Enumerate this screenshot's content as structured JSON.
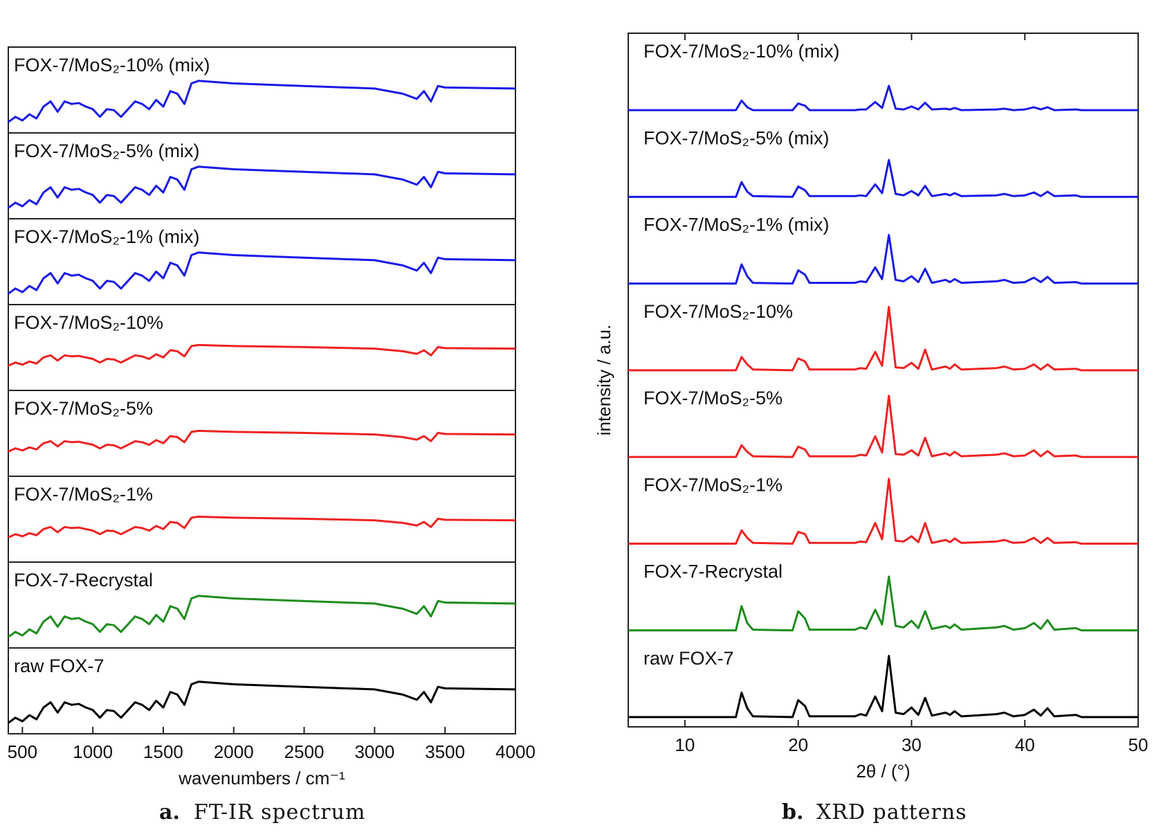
{
  "chart_data": [
    {
      "type": "line",
      "xlabel": "wavenumbers / cm⁻¹",
      "caption_label": "a.",
      "caption": "FT-IR spectrum",
      "xlim": [
        400,
        4000
      ],
      "xticks": [
        500,
        1000,
        1500,
        2000,
        2500,
        3000,
        3500,
        4000
      ],
      "ylim": [
        0,
        100
      ],
      "x": [
        400,
        450,
        500,
        550,
        600,
        650,
        700,
        750,
        800,
        850,
        900,
        950,
        1000,
        1050,
        1100,
        1150,
        1200,
        1250,
        1300,
        1350,
        1400,
        1450,
        1500,
        1550,
        1600,
        1650,
        1700,
        1750,
        2000,
        2500,
        3000,
        3200,
        3300,
        3350,
        3400,
        3450,
        3500,
        4000
      ],
      "series": [
        {
          "name": "FOX-7/MoS₂-10% (mix)",
          "color": "#1a1ae6",
          "values": [
            5,
            15,
            8,
            20,
            12,
            35,
            45,
            25,
            45,
            40,
            42,
            35,
            30,
            15,
            30,
            28,
            15,
            30,
            45,
            40,
            30,
            48,
            35,
            65,
            60,
            40,
            80,
            85,
            80,
            75,
            70,
            60,
            50,
            65,
            45,
            75,
            72,
            70
          ]
        },
        {
          "name": "FOX-7/MoS₂-5% (mix)",
          "color": "#1a1ae6",
          "values": [
            5,
            15,
            8,
            20,
            12,
            35,
            45,
            25,
            45,
            40,
            42,
            35,
            30,
            15,
            30,
            28,
            15,
            30,
            45,
            40,
            30,
            48,
            35,
            65,
            60,
            40,
            80,
            85,
            80,
            75,
            70,
            60,
            50,
            65,
            45,
            75,
            72,
            70
          ]
        },
        {
          "name": "FOX-7/MoS₂-1% (mix)",
          "color": "#1a1ae6",
          "values": [
            5,
            15,
            8,
            20,
            12,
            35,
            45,
            25,
            45,
            40,
            42,
            35,
            30,
            15,
            30,
            28,
            15,
            30,
            45,
            40,
            30,
            48,
            35,
            65,
            60,
            40,
            80,
            85,
            80,
            75,
            70,
            60,
            50,
            65,
            45,
            75,
            72,
            70
          ]
        },
        {
          "name": "FOX-7/MoS₂-10%",
          "color": "#ee2222",
          "values": [
            32,
            38,
            34,
            40,
            36,
            48,
            52,
            42,
            52,
            50,
            51,
            48,
            45,
            38,
            45,
            44,
            38,
            45,
            52,
            50,
            45,
            54,
            48,
            62,
            60,
            50,
            70,
            72,
            70,
            68,
            65,
            60,
            55,
            62,
            52,
            68,
            66,
            65
          ]
        },
        {
          "name": "FOX-7/MoS₂-5%",
          "color": "#ee2222",
          "values": [
            32,
            38,
            34,
            40,
            36,
            48,
            52,
            42,
            52,
            50,
            51,
            48,
            45,
            38,
            45,
            44,
            38,
            45,
            52,
            50,
            45,
            54,
            48,
            62,
            60,
            50,
            70,
            72,
            70,
            68,
            65,
            60,
            55,
            62,
            52,
            68,
            66,
            65
          ]
        },
        {
          "name": "FOX-7/MoS₂-1%",
          "color": "#ee2222",
          "values": [
            32,
            38,
            34,
            40,
            36,
            48,
            52,
            42,
            52,
            50,
            51,
            48,
            45,
            38,
            45,
            44,
            38,
            45,
            52,
            50,
            45,
            54,
            48,
            62,
            60,
            50,
            70,
            72,
            70,
            68,
            65,
            60,
            55,
            62,
            52,
            68,
            66,
            65
          ]
        },
        {
          "name": "FOX-7-Recrystal",
          "color": "#1e8c1e",
          "values": [
            5,
            15,
            8,
            20,
            12,
            35,
            45,
            25,
            45,
            40,
            42,
            35,
            30,
            15,
            30,
            28,
            15,
            30,
            45,
            40,
            30,
            48,
            35,
            65,
            60,
            40,
            80,
            85,
            80,
            75,
            70,
            60,
            50,
            65,
            45,
            75,
            72,
            70
          ]
        },
        {
          "name": "raw FOX-7",
          "color": "#000000",
          "values": [
            5,
            15,
            8,
            20,
            12,
            35,
            45,
            25,
            45,
            40,
            42,
            35,
            30,
            15,
            30,
            28,
            15,
            30,
            45,
            40,
            30,
            48,
            35,
            65,
            60,
            40,
            80,
            85,
            80,
            75,
            70,
            60,
            50,
            65,
            45,
            75,
            72,
            70
          ]
        }
      ]
    },
    {
      "type": "line",
      "xlabel": "2θ / (°)",
      "ylabel": "intensity / a.u.",
      "caption_label": "b.",
      "caption": "XRD patterns",
      "xlim": [
        5,
        50
      ],
      "xticks": [
        10,
        20,
        30,
        40,
        50
      ],
      "ylim": [
        0,
        100
      ],
      "x": [
        5,
        14.5,
        15,
        15.5,
        16,
        19.5,
        20,
        20.6,
        21,
        25,
        25.5,
        26,
        26.8,
        27.4,
        28,
        28.6,
        29.3,
        30,
        30.6,
        31.2,
        31.8,
        33,
        33.4,
        33.8,
        34.4,
        37.5,
        38.2,
        39,
        40,
        40.8,
        41.4,
        42,
        42.6,
        44.5,
        45,
        50
      ],
      "series": [
        {
          "name": "FOX-7/MoS₂-10% (mix)",
          "color": "#1a1ae6",
          "values": [
            2,
            2,
            15,
            6,
            2,
            2,
            11,
            8,
            2,
            2,
            3,
            3,
            13,
            5,
            35,
            4,
            3,
            7,
            3,
            12,
            3,
            4,
            3,
            5,
            2,
            3,
            4,
            2,
            3,
            6,
            3,
            6,
            2,
            3,
            2,
            2
          ]
        },
        {
          "name": "FOX-7/MoS₂-5% (mix)",
          "color": "#1a1ae6",
          "values": [
            2,
            2,
            22,
            9,
            3,
            2,
            16,
            11,
            3,
            3,
            4,
            3,
            19,
            7,
            52,
            6,
            4,
            10,
            4,
            17,
            3,
            6,
            4,
            7,
            3,
            4,
            6,
            3,
            4,
            8,
            3,
            9,
            3,
            4,
            2,
            2
          ]
        },
        {
          "name": "FOX-7/MoS₂-1% (mix)",
          "color": "#1a1ae6",
          "values": [
            2,
            2,
            28,
            12,
            3,
            2,
            20,
            14,
            3,
            3,
            5,
            4,
            24,
            8,
            68,
            7,
            5,
            12,
            4,
            22,
            3,
            7,
            4,
            8,
            3,
            5,
            7,
            3,
            4,
            10,
            4,
            11,
            3,
            4,
            2,
            2
          ]
        },
        {
          "name": "FOX-7/MoS₂-10%",
          "color": "#ee2222",
          "values": [
            2,
            2,
            20,
            10,
            3,
            2,
            18,
            14,
            3,
            3,
            5,
            4,
            27,
            8,
            88,
            6,
            5,
            12,
            4,
            30,
            3,
            7,
            4,
            10,
            3,
            5,
            7,
            3,
            4,
            10,
            3,
            10,
            3,
            4,
            2,
            2
          ]
        },
        {
          "name": "FOX-7/MoS₂-5%",
          "color": "#ee2222",
          "values": [
            2,
            2,
            18,
            9,
            3,
            2,
            16,
            12,
            3,
            3,
            5,
            4,
            30,
            8,
            85,
            6,
            5,
            11,
            4,
            28,
            3,
            7,
            4,
            9,
            3,
            5,
            7,
            3,
            4,
            11,
            3,
            10,
            3,
            4,
            2,
            2
          ]
        },
        {
          "name": "FOX-7/MoS₂-1%",
          "color": "#ee2222",
          "values": [
            2,
            2,
            20,
            10,
            3,
            2,
            18,
            15,
            3,
            3,
            5,
            4,
            30,
            8,
            90,
            6,
            5,
            12,
            4,
            30,
            3,
            7,
            4,
            9,
            3,
            5,
            7,
            3,
            4,
            10,
            3,
            10,
            3,
            4,
            2,
            2
          ]
        },
        {
          "name": "FOX-7-Recrystal",
          "color": "#1e8c1e",
          "values": [
            2,
            2,
            35,
            12,
            3,
            2,
            28,
            18,
            3,
            3,
            6,
            4,
            30,
            10,
            75,
            8,
            6,
            15,
            5,
            28,
            4,
            8,
            5,
            10,
            3,
            6,
            8,
            3,
            5,
            12,
            4,
            16,
            3,
            5,
            2,
            2
          ]
        },
        {
          "name": "raw FOX-7",
          "color": "#000000",
          "values": [
            2,
            2,
            35,
            14,
            3,
            2,
            25,
            17,
            3,
            3,
            6,
            4,
            30,
            10,
            85,
            8,
            6,
            15,
            5,
            28,
            4,
            8,
            5,
            10,
            3,
            6,
            8,
            3,
            5,
            12,
            4,
            14,
            3,
            5,
            2,
            2
          ]
        }
      ]
    }
  ]
}
